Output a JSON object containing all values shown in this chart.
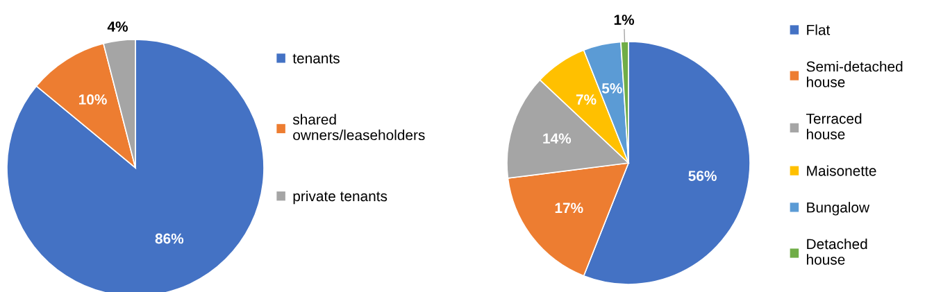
{
  "chart_data": [
    {
      "type": "pie",
      "categories": [
        "tenants",
        "shared owners/leaseholders",
        "private tenants"
      ],
      "values": [
        86,
        10,
        4
      ],
      "value_labels": [
        "86%",
        "10%",
        "4%"
      ],
      "colors": [
        "#4472c4",
        "#ed7d31",
        "#a5a5a5"
      ],
      "legend": "right"
    },
    {
      "type": "pie",
      "categories": [
        "Flat",
        "Semi-detached house",
        "Terraced house",
        "Maisonette",
        "Bungalow",
        "Detached house"
      ],
      "values": [
        56,
        17,
        14,
        7,
        5,
        1
      ],
      "value_labels": [
        "56%",
        "17%",
        "14%",
        "7%",
        "5%",
        "1%"
      ],
      "colors": [
        "#4472c4",
        "#ed7d31",
        "#a5a5a5",
        "#ffc000",
        "#5b9bd5",
        "#70ad47"
      ],
      "legend": "right"
    }
  ]
}
